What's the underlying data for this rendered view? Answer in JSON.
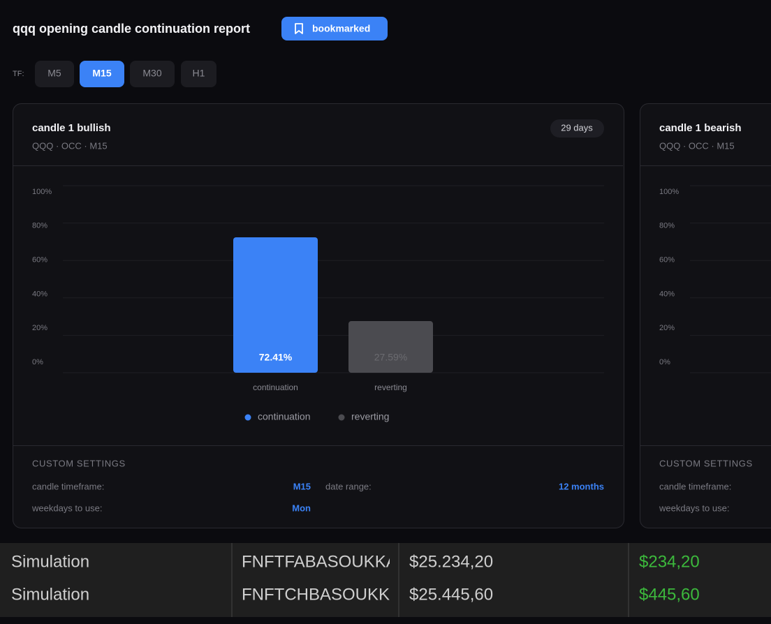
{
  "header": {
    "title": "qqq opening candle continuation report",
    "bookmark": "bookmarked"
  },
  "timeframe": {
    "label": "TF:",
    "options": [
      "M5",
      "M15",
      "M30",
      "H1"
    ],
    "selected": "M15"
  },
  "cards": [
    {
      "title": "candle 1 bullish",
      "subtitle": "QQQ · OCC · M15",
      "badge": "29 days",
      "chart_data": {
        "type": "bar",
        "categories": [
          "continuation",
          "reverting"
        ],
        "values": [
          72.41,
          27.59
        ],
        "value_labels": [
          "72.41%",
          "27.59%"
        ],
        "colors": [
          "#3b82f6",
          "#4b4b50"
        ],
        "ylim": [
          0,
          100
        ],
        "yticks": [
          {
            "value": 0,
            "label": "0%"
          },
          {
            "value": 20,
            "label": "20%"
          },
          {
            "value": 40,
            "label": "40%"
          },
          {
            "value": 60,
            "label": "60%"
          },
          {
            "value": 80,
            "label": "80%"
          },
          {
            "value": 100,
            "label": "100%"
          }
        ],
        "grid": true,
        "legend": "bottom"
      },
      "settings": {
        "heading": "CUSTOM SETTINGS",
        "items": [
          {
            "label": "candle timeframe:",
            "value": "M15"
          },
          {
            "label": "date range:",
            "value": "12 months"
          },
          {
            "label": "weekdays to use:",
            "value": "Mon"
          }
        ]
      }
    },
    {
      "title": "candle 1 bearish",
      "subtitle": "QQQ · OCC · M15",
      "chart_data": {
        "type": "bar",
        "ylim": [
          0,
          100
        ],
        "yticks": [
          {
            "value": 0,
            "label": "0%"
          },
          {
            "value": 20,
            "label": "20%"
          },
          {
            "value": 40,
            "label": "40%"
          },
          {
            "value": 60,
            "label": "60%"
          },
          {
            "value": 80,
            "label": "80%"
          },
          {
            "value": 100,
            "label": "100%"
          }
        ],
        "grid": true
      },
      "settings": {
        "heading": "CUSTOM SETTINGS",
        "items": [
          {
            "label": "candle timeframe:"
          },
          {
            "label": "weekdays to use:"
          }
        ]
      }
    }
  ],
  "table": {
    "rows": [
      [
        "Simulation",
        "FNFTFABASOUKKA",
        "$25.234,20",
        "$234,20"
      ],
      [
        "Simulation",
        "FNFTCHBASOUKK",
        "$25.445,60",
        "$445,60"
      ]
    ]
  }
}
